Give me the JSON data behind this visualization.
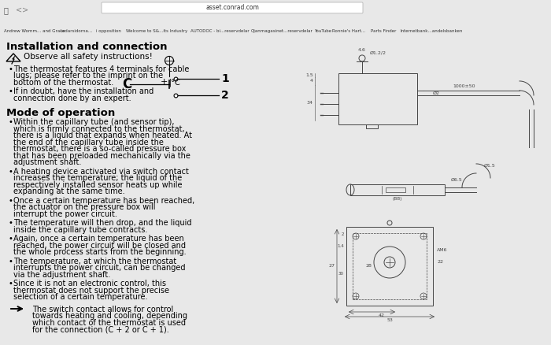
{
  "bg_color": "#e8e8e8",
  "page_bg": "#ffffff",
  "title_installation": "Installation and connection",
  "title_mode": "Mode of operation",
  "bullet_installation": [
    "The thermostat features 4 terminals for cable lugs; please refer to the imprint on the bottom of the thermostat.",
    "If in doubt, have the installation and connection done by an expert."
  ],
  "bullet_mode": [
    "Within the capillary tube (and sensor tip), which is firmly connected to the thermostat, there is a liquid that expands when heated. At the end of the capillary tube inside the thermostat, there is a so-called pressure box that has been preloaded mechanically via the adjustment shaft.",
    "A heating device activated via switch contact increases the temperature; the liquid of the respectively installed sensor heats up while expanding at the same time.",
    "Once a certain temperature has been reached, the actuator on the pressure box will interrupt the power circuit.",
    "The temperature will then drop, and the liquid inside the capillary tube contracts.",
    "Again, once a certain temperature has been reached, the power circuit will be closed and the whole process starts from the beginning.",
    "The temperature, at which the thermostat interrupts the power circuit, can be changed via the adjustment shaft.",
    "Since it is not an electronic control, this thermostat does not support the precise selection of a certain temperature."
  ],
  "arrow_note": "The switch contact allows for control towards heating and cooling, depending which contact of the thermostat is used for the connection (C + 2 or C + 1).",
  "safety_text": "Observe all safety instructions!"
}
